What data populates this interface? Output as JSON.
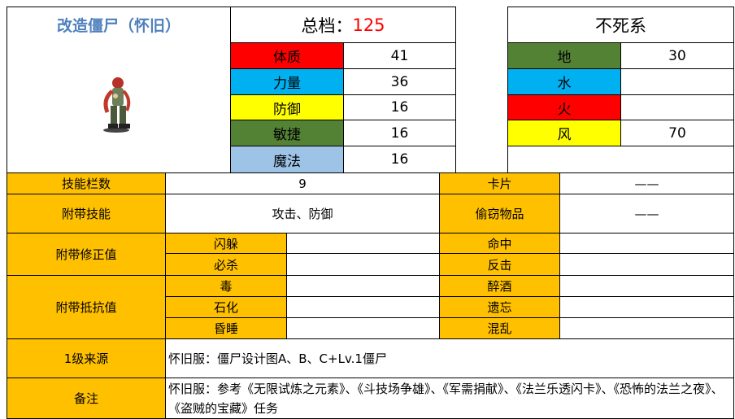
{
  "name": "改造僵尸（怀旧）",
  "total": {
    "label": "总档：",
    "value": 125
  },
  "stats": [
    {
      "label": "体质",
      "value": 41,
      "color": "#ff0000"
    },
    {
      "label": "力量",
      "value": 36,
      "color": "#00b0f0"
    },
    {
      "label": "防御",
      "value": 16,
      "color": "#ffff00"
    },
    {
      "label": "敏捷",
      "value": 16,
      "color": "#548235"
    },
    {
      "label": "魔法",
      "value": 16,
      "color": "#9dc3e6"
    }
  ],
  "type_name": "不死系",
  "elements": [
    {
      "label": "地",
      "value": 30,
      "color": "#548235"
    },
    {
      "label": "水",
      "color": "#00b0f0"
    },
    {
      "label": "火",
      "color": "#ff0000"
    },
    {
      "label": "风",
      "value": 70,
      "color": "#ffff00"
    }
  ],
  "table": {
    "skill_slots": {
      "label": "技能栏数",
      "value": 9
    },
    "card": {
      "label": "卡片",
      "value": "——"
    },
    "skills": {
      "label": "附带技能",
      "value": "攻击、防御"
    },
    "steal": {
      "label": "偷窃物品",
      "value": "——"
    },
    "modifiers": {
      "label": "附带修正值",
      "items": [
        "闪躲",
        "必杀",
        "命中",
        "反击"
      ]
    },
    "resistances": {
      "label": "附带抵抗值",
      "items": [
        "毒",
        "石化",
        "昏睡",
        "醉酒",
        "遗忘",
        "混乱"
      ]
    },
    "source": {
      "label": "1级来源",
      "value": "怀旧服：僵尸设计图A、B、C+Lv.1僵尸"
    },
    "notes": {
      "label": "备注",
      "value": "怀旧服：参考《无限试炼之元素》、《斗技场争雄》、《军需捐献》、《法兰乐透闪卡》、《恐怖的法兰之夜》、《盗贼的宝藏》任务"
    }
  }
}
